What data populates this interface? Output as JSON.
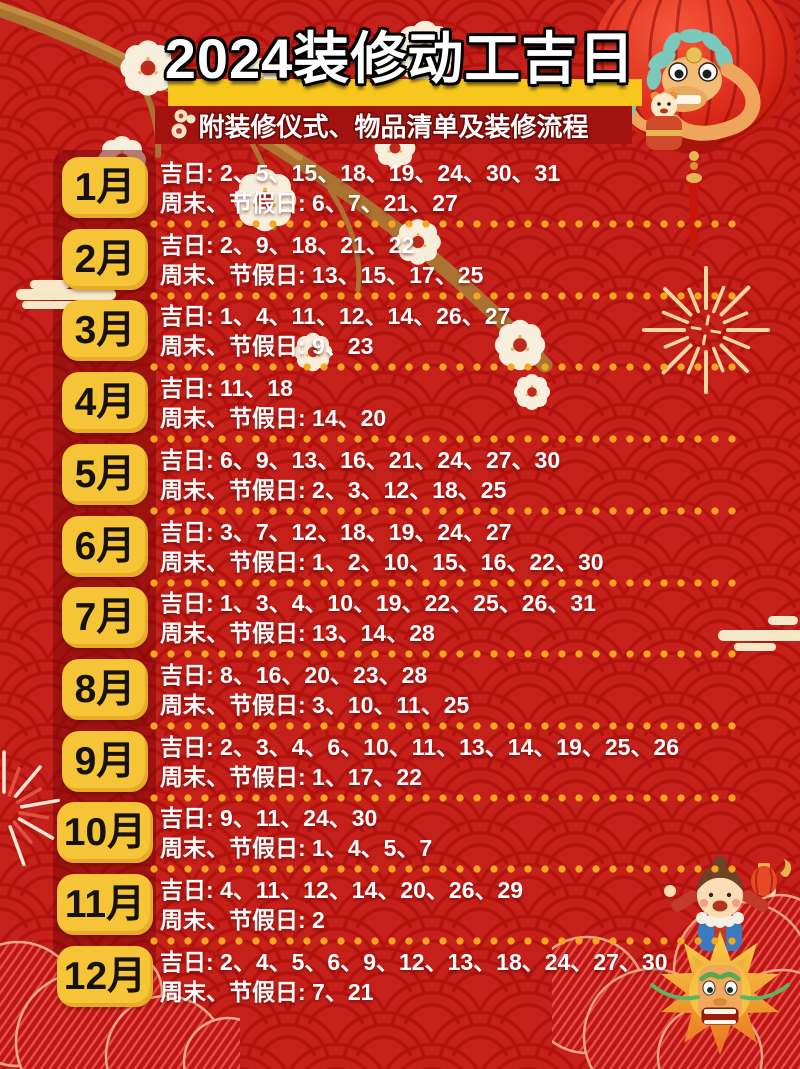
{
  "poster": {
    "title": "2024装修动工吉日",
    "subtitle": "附装修仪式、物品清单及装修流程"
  },
  "months": [
    {
      "label": "1月",
      "lucky": "吉日: 2、5、15、18、19、24、30、31",
      "weekend": "周末、节假日: 6、7、21、27"
    },
    {
      "label": "2月",
      "lucky": "吉日: 2、9、18、21、22",
      "weekend": "周末、节假日: 13、15、17、25"
    },
    {
      "label": "3月",
      "lucky": "吉日: 1、4、11、12、14、26、27",
      "weekend": "周末、节假日: 9、23"
    },
    {
      "label": "4月",
      "lucky": "吉日: 11、18",
      "weekend": "周末、节假日: 14、20"
    },
    {
      "label": "5月",
      "lucky": "吉日: 6、9、13、16、21、24、27、30",
      "weekend": "周末、节假日: 2、3、12、18、25"
    },
    {
      "label": "6月",
      "lucky": "吉日: 3、7、12、18、19、24、27",
      "weekend": "周末、节假日: 1、2、10、15、16、22、30"
    },
    {
      "label": "7月",
      "lucky": "吉日: 1、3、4、10、19、22、25、26、31",
      "weekend": "周末、节假日: 13、14、28"
    },
    {
      "label": "8月",
      "lucky": "吉日: 8、16、20、23、28",
      "weekend": "周末、节假日: 3、10、11、25"
    },
    {
      "label": "9月",
      "lucky": "吉日: 2、3、4、6、10、11、13、14、19、25、26",
      "weekend": "周末、节假日: 1、17、22"
    },
    {
      "label": "10月",
      "lucky": "吉日: 9、11、24、30",
      "weekend": "周末、节假日: 1、4、5、7"
    },
    {
      "label": "11月",
      "lucky": "吉日: 4、11、12、14、20、26、29",
      "weekend": "周末、节假日: 2"
    },
    {
      "label": "12月",
      "lucky": "吉日: 2、4、5、6、9、12、13、18、24、27、30",
      "weekend": "周末、节假日: 7、21"
    }
  ],
  "colors": {
    "background": "#C6201A",
    "scale_pattern": "#B2130E",
    "month_badge": "#F5C437",
    "badge_text": "#17120E",
    "separator_dots": "#F7A41F",
    "title_band": "#F8C71E",
    "subtitle_band": "#A21310",
    "body_text": "#FFFFFF",
    "lantern_red": "#DC2B1B"
  },
  "decorations": [
    "plum-blossom-branch",
    "red-lantern",
    "dragon-tiger-mascot",
    "lantern-tassel",
    "firework-burst-right",
    "firework-burst-left",
    "auspicious-cloud-left",
    "auspicious-cloud-right",
    "peony-flowers-left",
    "peony-flowers-right",
    "dragon-head",
    "lucky-boy",
    "boy-lantern"
  ]
}
